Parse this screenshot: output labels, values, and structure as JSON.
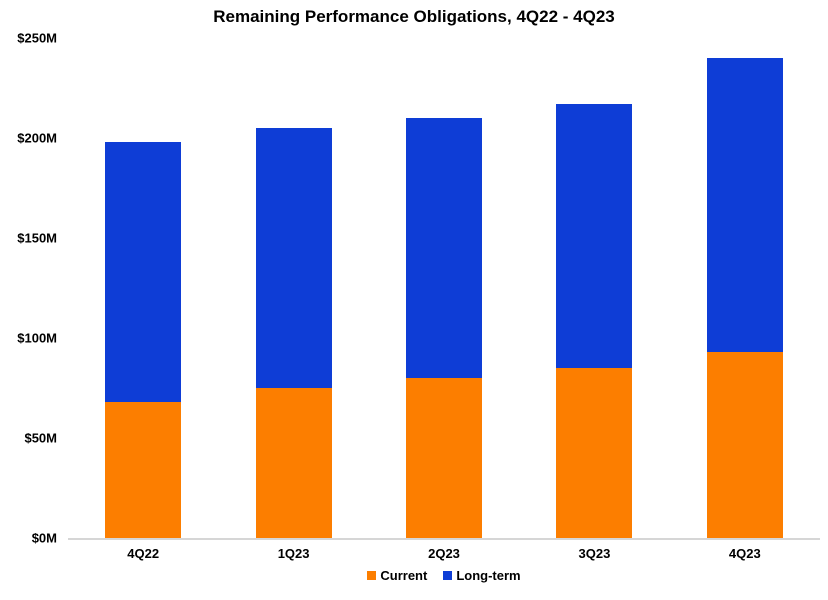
{
  "title": "Remaining Performance Obligations, 4Q22 - 4Q23",
  "colors": {
    "current": "#FC7E00",
    "long_term": "#0E3DD6",
    "axis_line": "#D6D6D6",
    "text": "#000000",
    "background": "#FFFFFF"
  },
  "y_axis": {
    "tick_labels": [
      "$250M",
      "$200M",
      "$150M",
      "$100M",
      "$50M",
      "$0M"
    ],
    "min": 0,
    "max": 250,
    "unit": "$M"
  },
  "chart_data": {
    "type": "bar",
    "stacked": true,
    "title": "Remaining Performance Obligations, 4Q22 - 4Q23",
    "categories": [
      "4Q22",
      "1Q23",
      "2Q23",
      "3Q23",
      "4Q23"
    ],
    "series": [
      {
        "name": "Current",
        "color": "#FC7E00",
        "values": [
          68,
          75,
          80,
          85,
          93
        ]
      },
      {
        "name": "Long-term",
        "color": "#0E3DD6",
        "values": [
          130,
          130,
          130,
          132,
          147
        ]
      }
    ],
    "totals": [
      198,
      205,
      210,
      217,
      240
    ],
    "xlabel": "",
    "ylabel": "",
    "ylim": [
      0,
      250
    ],
    "y_tick_step": 50,
    "grid": false,
    "legend_position": "bottom",
    "legend_entries": [
      "Current",
      "Long-term"
    ]
  }
}
